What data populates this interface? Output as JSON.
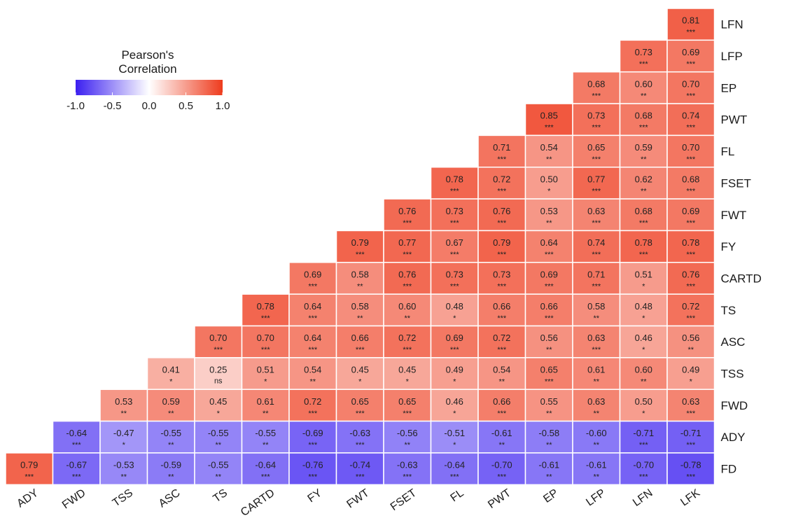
{
  "chart_data": {
    "type": "heatmap",
    "title": "",
    "colors": {
      "low": "#3b1ff0",
      "mid": "#ffffff",
      "high": "#ee3b1d"
    },
    "legend": {
      "title_line1": "Pearson's",
      "title_line2": "Correlation",
      "ticks": [
        "-1.0",
        "-0.5",
        "0.0",
        "0.5",
        "1.0"
      ],
      "range": [
        -1,
        1
      ],
      "placement": "top-left"
    },
    "x_labels": [
      "ADY",
      "FWD",
      "TSS",
      "ASC",
      "TS",
      "CARTD",
      "FY",
      "FWT",
      "FSET",
      "FL",
      "PWT",
      "EP",
      "LFP",
      "LFN",
      "LFK"
    ],
    "y_labels": [
      "LFN",
      "LFP",
      "EP",
      "PWT",
      "FL",
      "FSET",
      "FWT",
      "FY",
      "CARTD",
      "TS",
      "ASC",
      "TSS",
      "FWD",
      "ADY",
      "FD"
    ],
    "rows": [
      {
        "label": "LFN",
        "values": [
          0.81
        ],
        "sig": [
          "***"
        ]
      },
      {
        "label": "LFP",
        "values": [
          0.73,
          0.69
        ],
        "sig": [
          "***",
          "***"
        ]
      },
      {
        "label": "EP",
        "values": [
          0.68,
          0.6,
          0.7
        ],
        "sig": [
          "***",
          "**",
          "***"
        ]
      },
      {
        "label": "PWT",
        "values": [
          0.85,
          0.73,
          0.68,
          0.74
        ],
        "sig": [
          "***",
          "***",
          "***",
          "***"
        ]
      },
      {
        "label": "FL",
        "values": [
          0.71,
          0.54,
          0.65,
          0.59,
          0.7
        ],
        "sig": [
          "***",
          "**",
          "***",
          "**",
          "***"
        ]
      },
      {
        "label": "FSET",
        "values": [
          0.78,
          0.72,
          0.5,
          0.77,
          0.62,
          0.68
        ],
        "sig": [
          "***",
          "***",
          "*",
          "***",
          "**",
          "***"
        ]
      },
      {
        "label": "FWT",
        "values": [
          0.76,
          0.73,
          0.76,
          0.53,
          0.63,
          0.68,
          0.69
        ],
        "sig": [
          "***",
          "***",
          "***",
          "**",
          "***",
          "***",
          "***"
        ]
      },
      {
        "label": "FY",
        "values": [
          0.79,
          0.77,
          0.67,
          0.79,
          0.64,
          0.74,
          0.78,
          0.78
        ],
        "sig": [
          "***",
          "***",
          "***",
          "***",
          "***",
          "***",
          "***",
          "***"
        ]
      },
      {
        "label": "CARTD",
        "values": [
          0.69,
          0.58,
          0.76,
          0.73,
          0.73,
          0.69,
          0.71,
          0.51,
          0.76
        ],
        "sig": [
          "***",
          "**",
          "***",
          "***",
          "***",
          "***",
          "***",
          "*",
          "***"
        ]
      },
      {
        "label": "TS",
        "values": [
          0.78,
          0.64,
          0.58,
          0.6,
          0.48,
          0.66,
          0.66,
          0.58,
          0.48,
          0.72
        ],
        "sig": [
          "***",
          "***",
          "**",
          "**",
          "*",
          "***",
          "***",
          "**",
          "*",
          "***"
        ]
      },
      {
        "label": "ASC",
        "values": [
          0.7,
          0.7,
          0.64,
          0.66,
          0.72,
          0.69,
          0.72,
          0.56,
          0.63,
          0.46,
          0.56
        ],
        "sig": [
          "***",
          "***",
          "***",
          "***",
          "***",
          "***",
          "***",
          "**",
          "***",
          "*",
          "**"
        ]
      },
      {
        "label": "TSS",
        "values": [
          0.41,
          0.25,
          0.51,
          0.54,
          0.45,
          0.45,
          0.49,
          0.54,
          0.65,
          0.61,
          0.6,
          0.49
        ],
        "sig": [
          "*",
          "ns",
          "*",
          "**",
          "*",
          "*",
          "*",
          "**",
          "***",
          "**",
          "**",
          "*"
        ]
      },
      {
        "label": "FWD",
        "values": [
          0.53,
          0.59,
          0.45,
          0.61,
          0.72,
          0.65,
          0.65,
          0.46,
          0.66,
          0.55,
          0.63,
          0.5,
          0.63
        ],
        "sig": [
          "**",
          "**",
          "*",
          "**",
          "***",
          "***",
          "***",
          "*",
          "***",
          "**",
          "**",
          "*",
          "***"
        ]
      },
      {
        "label": "ADY",
        "values": [
          -0.64,
          -0.47,
          -0.55,
          -0.55,
          -0.55,
          -0.69,
          -0.63,
          -0.56,
          -0.51,
          -0.61,
          -0.58,
          -0.6,
          -0.71,
          -0.71
        ],
        "sig": [
          "***",
          "*",
          "**",
          "**",
          "**",
          "***",
          "***",
          "**",
          "*",
          "**",
          "**",
          "**",
          "***",
          "***"
        ]
      },
      {
        "label": "FD",
        "values": [
          0.79,
          -0.67,
          -0.53,
          -0.59,
          -0.55,
          -0.64,
          -0.76,
          -0.74,
          -0.63,
          -0.64,
          -0.7,
          -0.61,
          -0.61,
          -0.7,
          -0.78
        ],
        "sig": [
          "***",
          "***",
          "**",
          "**",
          "**",
          "***",
          "***",
          "***",
          "***",
          "***",
          "***",
          "**",
          "**",
          "***",
          "***"
        ]
      }
    ]
  }
}
